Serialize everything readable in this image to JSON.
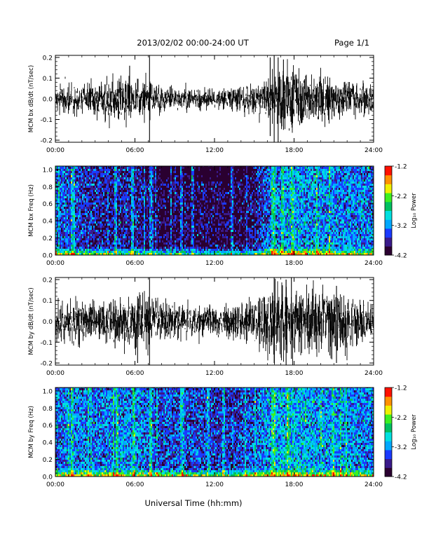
{
  "header": {
    "date_range": "2013/02/02  00:00-24:00 UT",
    "page": "Page 1/1"
  },
  "x_axis": {
    "ticks": [
      "00:00",
      "06:00",
      "12:00",
      "18:00",
      "24:00"
    ],
    "tick_hours": [
      0,
      6,
      12,
      18,
      24
    ],
    "label": "Universal Time (hh:mm)",
    "range_hours": [
      0,
      24
    ]
  },
  "colorbar": {
    "label": "Log₁₀ Power",
    "ticks": [
      "-1.2",
      "-2.2",
      "-3.2",
      "-4.2"
    ],
    "tick_values": [
      -1.2,
      -2.2,
      -3.2,
      -4.2
    ],
    "range": [
      -4.2,
      -1.2
    ],
    "colormap": [
      "#2a0030",
      "#3a1a8a",
      "#1a3aff",
      "#00a8ff",
      "#00e0e0",
      "#00c060",
      "#3cf020",
      "#f0f000",
      "#ff9000",
      "#ff1000"
    ]
  },
  "chart_data": [
    {
      "type": "line",
      "name": "bx-timeseries",
      "ylabel": "MCM bx dB/dt (nT/sec)",
      "yticks": [
        "-0.2",
        "-0.1",
        "0.0",
        "0.1",
        "0.2"
      ],
      "ytick_values": [
        -0.2,
        -0.1,
        0.0,
        0.1,
        0.2
      ],
      "ylim": [
        -0.21,
        0.21
      ],
      "envelope": {
        "hours": [
          0,
          1,
          2,
          3,
          4,
          5,
          6,
          7,
          8,
          9,
          10,
          11,
          12,
          13,
          14,
          15,
          16,
          17,
          18,
          19,
          20,
          21,
          22,
          23,
          24
        ],
        "amplitude": [
          0.045,
          0.05,
          0.045,
          0.05,
          0.07,
          0.08,
          0.07,
          0.06,
          0.04,
          0.035,
          0.035,
          0.035,
          0.03,
          0.035,
          0.04,
          0.05,
          0.06,
          0.1,
          0.11,
          0.08,
          0.07,
          0.07,
          0.06,
          0.05,
          0.04
        ]
      },
      "spikes": [
        {
          "hour": 5.6,
          "min": -0.06,
          "max": 0.16
        },
        {
          "hour": 7.1,
          "min": -0.21,
          "max": 0.21
        },
        {
          "hour": 16.2,
          "min": -0.18,
          "max": 0.2
        },
        {
          "hour": 16.5,
          "min": -0.21,
          "max": 0.21
        },
        {
          "hour": 16.8,
          "min": -0.21,
          "max": 0.2
        },
        {
          "hour": 17.2,
          "min": -0.15,
          "max": 0.19
        }
      ]
    },
    {
      "type": "heatmap",
      "name": "bx-spectrogram",
      "ylabel": "MCM bx Freq (Hz)",
      "yticks": [
        "0.0",
        "0.2",
        "0.4",
        "0.6",
        "0.8",
        "1.0"
      ],
      "ytick_values": [
        0.0,
        0.2,
        0.4,
        0.6,
        0.8,
        1.0
      ],
      "ylim": [
        0,
        1.04
      ],
      "zrange": [
        -4.2,
        -1.2
      ],
      "profile": {
        "hours": [
          0,
          1,
          2,
          3,
          4,
          5,
          6,
          7,
          8,
          9,
          10,
          11,
          12,
          13,
          14,
          15,
          16,
          17,
          18,
          19,
          20,
          21,
          22,
          23,
          24
        ],
        "background": [
          -3.4,
          -3.5,
          -3.6,
          -3.7,
          -3.8,
          -3.7,
          -3.7,
          -3.9,
          -4.0,
          -4.0,
          -4.0,
          -4.0,
          -4.0,
          -4.0,
          -4.0,
          -3.8,
          -3.4,
          -3.2,
          -3.1,
          -3.2,
          -3.2,
          -3.3,
          -3.3,
          -3.3,
          -3.3
        ]
      },
      "bright_streaks_hours": [
        1.2,
        4.5,
        5.8,
        7.1,
        9.5,
        10.3,
        13.3,
        16.4,
        17.1
      ]
    },
    {
      "type": "line",
      "name": "by-timeseries",
      "ylabel": "MCM by dB/dt (nT/sec)",
      "yticks": [
        "-0.2",
        "-0.1",
        "0.0",
        "0.1",
        "0.2"
      ],
      "ytick_values": [
        -0.2,
        -0.1,
        0.0,
        0.1,
        0.2
      ],
      "ylim": [
        -0.21,
        0.21
      ],
      "envelope": {
        "hours": [
          0,
          1,
          2,
          3,
          4,
          5,
          6,
          7,
          8,
          9,
          10,
          11,
          12,
          13,
          14,
          15,
          16,
          17,
          18,
          19,
          20,
          21,
          22,
          23,
          24
        ],
        "amplitude": [
          0.06,
          0.06,
          0.07,
          0.06,
          0.08,
          0.09,
          0.09,
          0.08,
          0.06,
          0.06,
          0.05,
          0.05,
          0.05,
          0.05,
          0.06,
          0.07,
          0.1,
          0.13,
          0.14,
          0.11,
          0.1,
          0.12,
          0.1,
          0.07,
          0.05
        ]
      },
      "spikes": [
        {
          "hour": 4.5,
          "min": -0.13,
          "max": 0.1
        },
        {
          "hour": 6.2,
          "min": -0.2,
          "max": 0.12
        },
        {
          "hour": 7.1,
          "min": -0.21,
          "max": 0.21
        },
        {
          "hour": 16.5,
          "min": -0.2,
          "max": 0.21
        },
        {
          "hour": 17.4,
          "min": -0.21,
          "max": 0.2
        },
        {
          "hour": 17.8,
          "min": -0.18,
          "max": 0.21
        },
        {
          "hour": 21.2,
          "min": -0.2,
          "max": 0.17
        }
      ]
    },
    {
      "type": "heatmap",
      "name": "by-spectrogram",
      "ylabel": "MCM by Freq (Hz)",
      "yticks": [
        "0.0",
        "0.2",
        "0.4",
        "0.6",
        "0.8",
        "1.0"
      ],
      "ytick_values": [
        0.0,
        0.2,
        0.4,
        0.6,
        0.8,
        1.0
      ],
      "ylim": [
        0,
        1.04
      ],
      "zrange": [
        -4.2,
        -1.2
      ],
      "profile": {
        "hours": [
          0,
          1,
          2,
          3,
          4,
          5,
          6,
          7,
          8,
          9,
          10,
          11,
          12,
          13,
          14,
          15,
          16,
          17,
          18,
          19,
          20,
          21,
          22,
          23,
          24
        ],
        "background": [
          -3.3,
          -3.3,
          -3.3,
          -3.3,
          -3.3,
          -3.3,
          -3.3,
          -3.4,
          -3.5,
          -3.5,
          -3.5,
          -3.5,
          -3.6,
          -3.6,
          -3.5,
          -3.4,
          -3.2,
          -3.1,
          -3.0,
          -3.1,
          -3.2,
          -3.2,
          -3.2,
          -3.3,
          -3.3
        ]
      },
      "bright_streaks_hours": [
        1.2,
        4.6,
        5.9,
        7.1,
        9.5,
        12.6,
        16.4,
        17.5
      ]
    }
  ]
}
